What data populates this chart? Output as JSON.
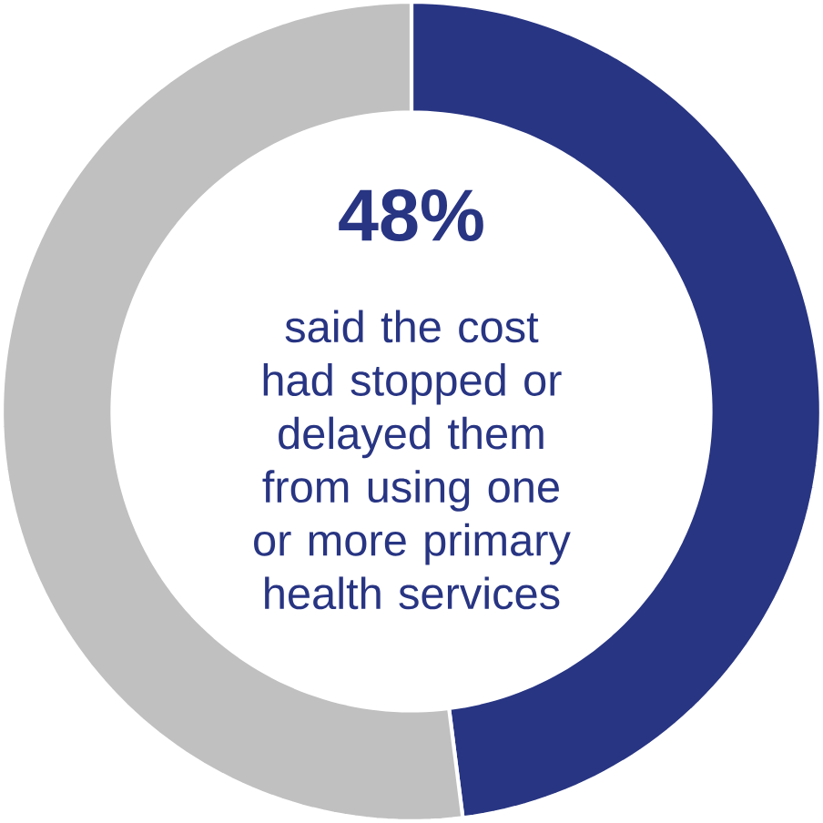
{
  "chart_data": {
    "type": "donut",
    "categories": [
      null,
      null
    ],
    "values": [
      48,
      52
    ],
    "colors": [
      "#283583",
      "#c0c0c0"
    ],
    "annotations": [
      "48%",
      "said the cost had stopped or delayed them from using one or more primary health services"
    ]
  }
}
